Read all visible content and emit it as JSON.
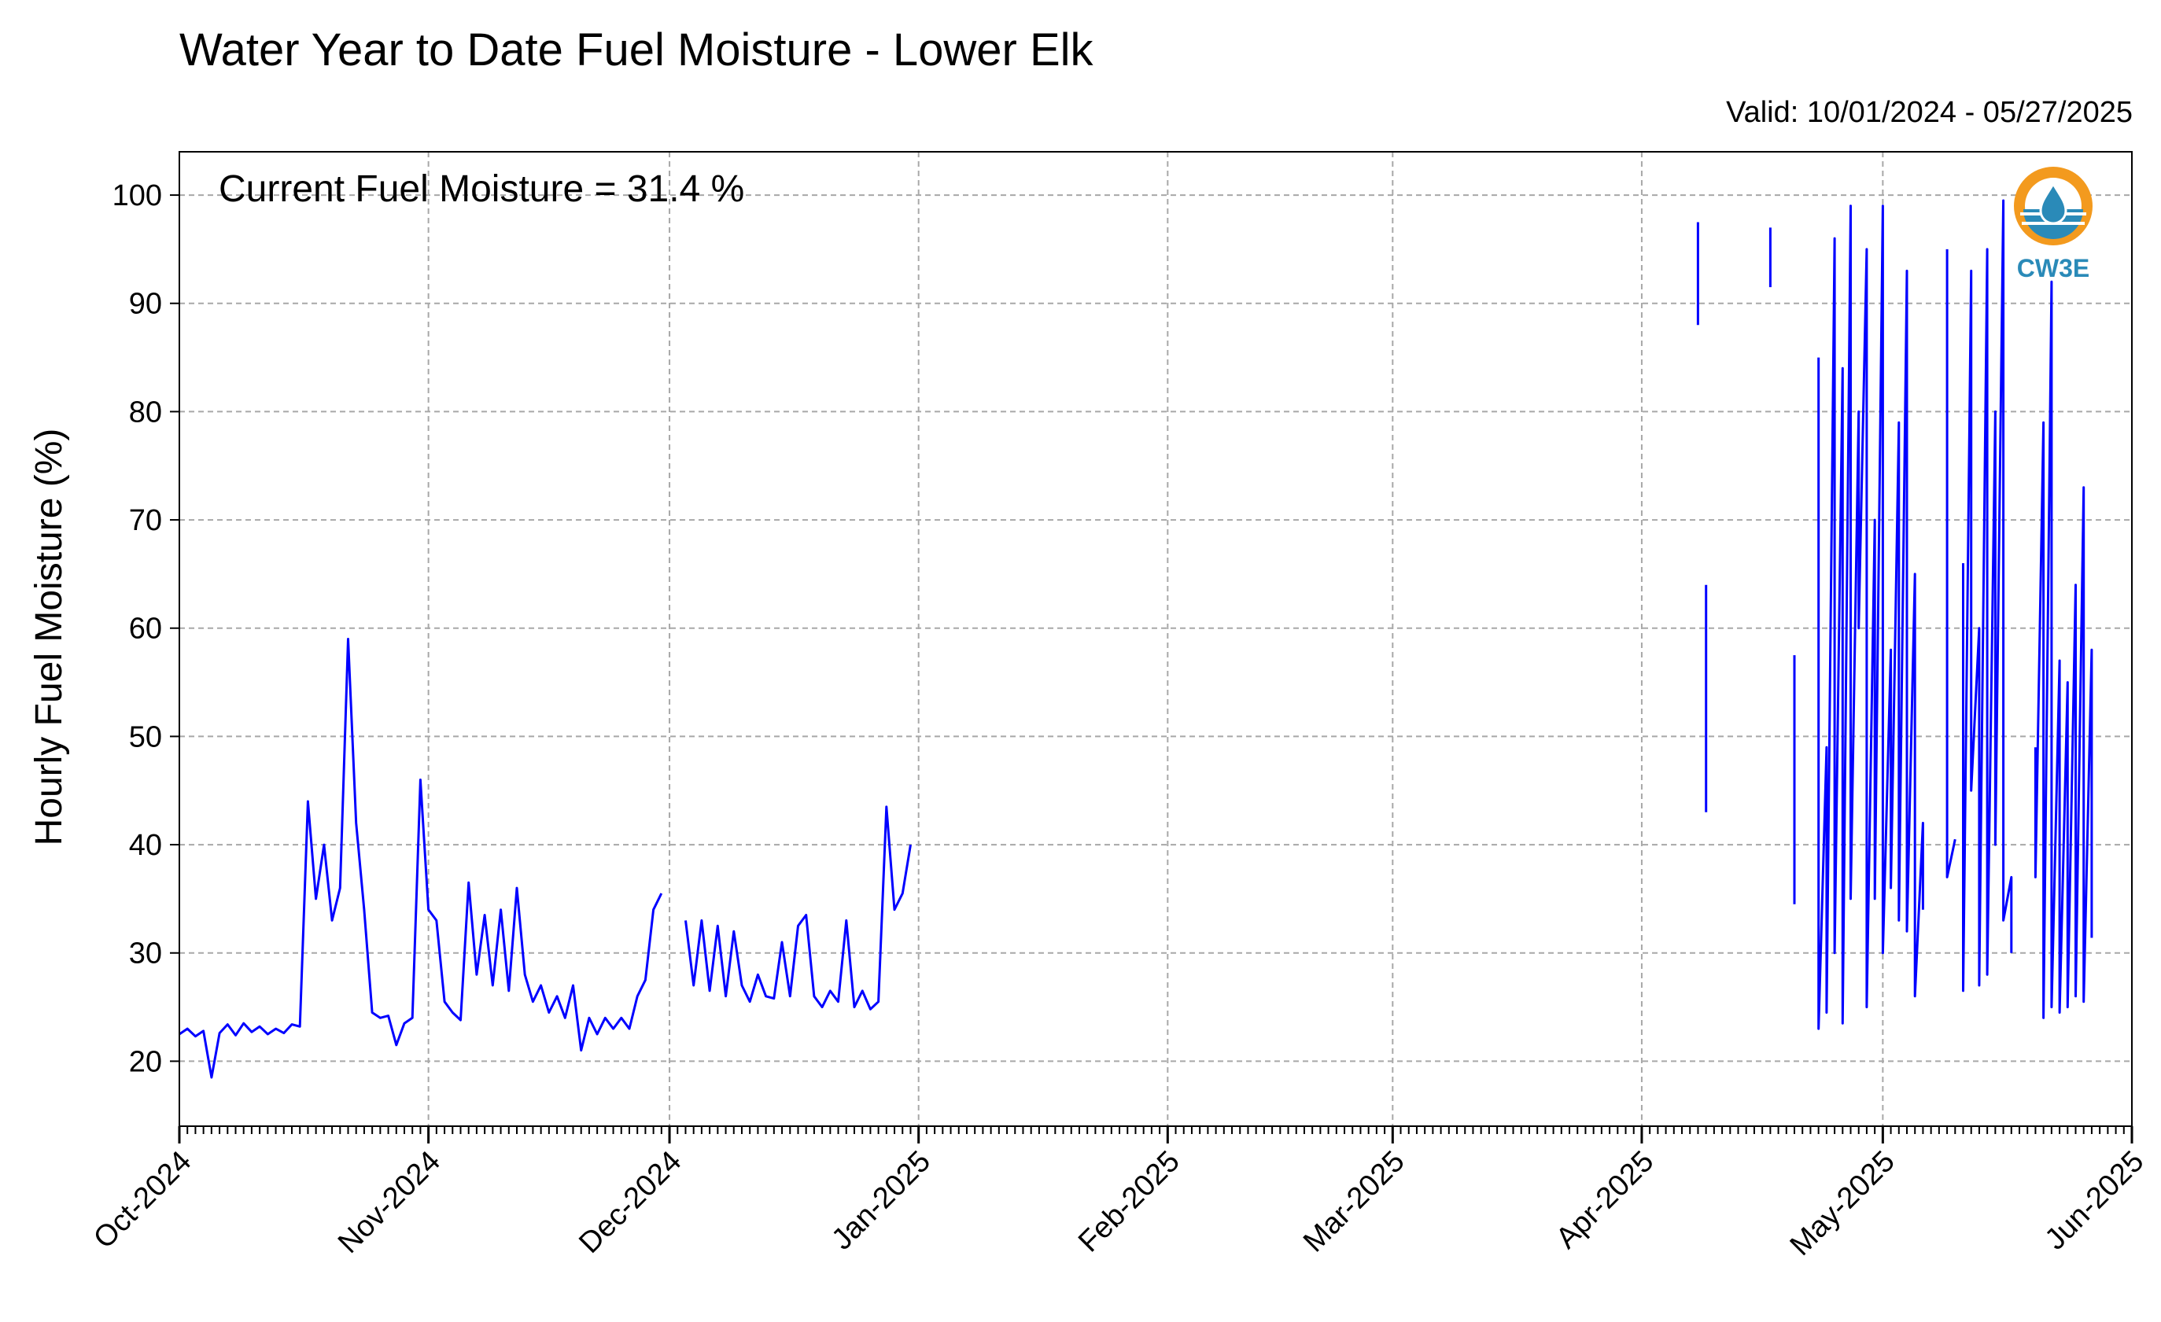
{
  "page": {
    "title": "Water Year to Date Fuel Moisture - Lower Elk",
    "valid": "Valid: 10/01/2024 - 05/27/2025"
  },
  "logo": {
    "text": "CW3E",
    "icon": "cw3e-logo-icon",
    "colors": {
      "orange": "#f39a1e",
      "blue": "#2a8ab8"
    }
  },
  "chart_data": {
    "type": "line",
    "title": "Water Year to Date Fuel Moisture - Lower Elk",
    "ylabel": "Hourly Fuel Moisture (%)",
    "xlabel": "",
    "annotation": "Current Fuel Moisture = 31.4 %",
    "ylim": [
      14,
      104
    ],
    "yticks": [
      20,
      30,
      40,
      50,
      60,
      70,
      80,
      90,
      100
    ],
    "xlim": [
      "2024-10-01",
      "2025-06-01"
    ],
    "xticks": [
      {
        "date": "2024-10-01",
        "label": "Oct-2024"
      },
      {
        "date": "2024-11-01",
        "label": "Nov-2024"
      },
      {
        "date": "2024-12-01",
        "label": "Dec-2024"
      },
      {
        "date": "2025-01-01",
        "label": "Jan-2025"
      },
      {
        "date": "2025-02-01",
        "label": "Feb-2025"
      },
      {
        "date": "2025-03-01",
        "label": "Mar-2025"
      },
      {
        "date": "2025-04-01",
        "label": "Apr-2025"
      },
      {
        "date": "2025-05-01",
        "label": "May-2025"
      },
      {
        "date": "2025-06-01",
        "label": "Jun-2025"
      }
    ],
    "grid": true,
    "line_color": "#0000ff",
    "series": [
      {
        "values_by_segment": [
          [
            [
              "2024-10-01",
              22.5
            ],
            [
              "2024-10-02",
              23.0
            ],
            [
              "2024-10-03",
              22.3
            ],
            [
              "2024-10-04",
              22.8
            ],
            [
              "2024-10-05",
              18.5
            ],
            [
              "2024-10-06",
              22.6
            ],
            [
              "2024-10-07",
              23.4
            ],
            [
              "2024-10-08",
              22.4
            ],
            [
              "2024-10-09",
              23.5
            ],
            [
              "2024-10-10",
              22.7
            ],
            [
              "2024-10-11",
              23.2
            ],
            [
              "2024-10-12",
              22.5
            ],
            [
              "2024-10-13",
              23.0
            ],
            [
              "2024-10-14",
              22.6
            ],
            [
              "2024-10-15",
              23.4
            ],
            [
              "2024-10-16",
              23.2
            ],
            [
              "2024-10-17",
              44.0
            ],
            [
              "2024-10-18",
              35.0
            ],
            [
              "2024-10-19",
              40.0
            ],
            [
              "2024-10-20",
              33.0
            ],
            [
              "2024-10-21",
              36.0
            ],
            [
              "2024-10-22",
              59.0
            ],
            [
              "2024-10-23",
              42.0
            ],
            [
              "2024-10-24",
              34.0
            ],
            [
              "2024-10-25",
              24.5
            ],
            [
              "2024-10-26",
              24.0
            ],
            [
              "2024-10-27",
              24.2
            ],
            [
              "2024-10-28",
              21.5
            ],
            [
              "2024-10-29",
              23.5
            ],
            [
              "2024-10-30",
              24.0
            ],
            [
              "2024-10-31",
              46.0
            ],
            [
              "2024-11-01",
              34.0
            ],
            [
              "2024-11-02",
              33.0
            ],
            [
              "2024-11-03",
              25.5
            ],
            [
              "2024-11-04",
              24.5
            ],
            [
              "2024-11-05",
              23.8
            ],
            [
              "2024-11-06",
              36.5
            ],
            [
              "2024-11-07",
              28.0
            ],
            [
              "2024-11-08",
              33.5
            ],
            [
              "2024-11-09",
              27.0
            ],
            [
              "2024-11-10",
              34.0
            ],
            [
              "2024-11-11",
              26.5
            ],
            [
              "2024-11-12",
              36.0
            ],
            [
              "2024-11-13",
              28.0
            ],
            [
              "2024-11-14",
              25.5
            ],
            [
              "2024-11-15",
              27.0
            ],
            [
              "2024-11-16",
              24.5
            ],
            [
              "2024-11-17",
              26.0
            ],
            [
              "2024-11-18",
              24.0
            ],
            [
              "2024-11-19",
              27.0
            ],
            [
              "2024-11-20",
              21.0
            ],
            [
              "2024-11-21",
              24.0
            ],
            [
              "2024-11-22",
              22.5
            ],
            [
              "2024-11-23",
              24.0
            ],
            [
              "2024-11-24",
              23.0
            ],
            [
              "2024-11-25",
              24.0
            ],
            [
              "2024-11-26",
              23.0
            ],
            [
              "2024-11-27",
              26.0
            ],
            [
              "2024-11-28",
              27.5
            ],
            [
              "2024-11-29",
              34.0
            ],
            [
              "2024-11-30",
              35.5
            ]
          ],
          [
            [
              "2024-12-03",
              33.0
            ],
            [
              "2024-12-04",
              27.0
            ],
            [
              "2024-12-05",
              33.0
            ],
            [
              "2024-12-06",
              26.5
            ],
            [
              "2024-12-07",
              32.5
            ],
            [
              "2024-12-08",
              26.0
            ],
            [
              "2024-12-09",
              32.0
            ],
            [
              "2024-12-10",
              27.0
            ],
            [
              "2024-12-11",
              25.5
            ],
            [
              "2024-12-12",
              28.0
            ],
            [
              "2024-12-13",
              26.0
            ],
            [
              "2024-12-14",
              25.8
            ],
            [
              "2024-12-15",
              31.0
            ],
            [
              "2024-12-16",
              26.0
            ],
            [
              "2024-12-17",
              32.5
            ],
            [
              "2024-12-18",
              33.5
            ],
            [
              "2024-12-19",
              26.0
            ],
            [
              "2024-12-20",
              25.0
            ],
            [
              "2024-12-21",
              26.5
            ],
            [
              "2024-12-22",
              25.5
            ],
            [
              "2024-12-23",
              33.0
            ],
            [
              "2024-12-24",
              25.0
            ],
            [
              "2024-12-25",
              26.5
            ],
            [
              "2024-12-26",
              24.8
            ],
            [
              "2024-12-27",
              25.5
            ],
            [
              "2024-12-28",
              43.5
            ],
            [
              "2024-12-29",
              34.0
            ],
            [
              "2024-12-30",
              35.5
            ],
            [
              "2024-12-31",
              40.0
            ]
          ],
          [
            [
              "2025-04-08",
              97.5
            ],
            [
              "2025-04-08",
              88.0
            ]
          ],
          [
            [
              "2025-04-09",
              64.0
            ],
            [
              "2025-04-09",
              43.0
            ]
          ],
          [
            [
              "2025-04-17",
              97.0
            ],
            [
              "2025-04-17",
              91.5
            ]
          ],
          [
            [
              "2025-04-20",
              57.5
            ],
            [
              "2025-04-20",
              40.0
            ],
            [
              "2025-04-20",
              34.5
            ]
          ],
          [
            [
              "2025-04-23",
              85.0
            ],
            [
              "2025-04-23",
              23.0
            ],
            [
              "2025-04-24",
              49.0
            ],
            [
              "2025-04-24",
              24.5
            ],
            [
              "2025-04-25",
              96.0
            ],
            [
              "2025-04-25",
              30.0
            ],
            [
              "2025-04-26",
              84.0
            ],
            [
              "2025-04-26",
              23.5
            ],
            [
              "2025-04-27",
              99.0
            ],
            [
              "2025-04-27",
              35.0
            ],
            [
              "2025-04-28",
              80.0
            ],
            [
              "2025-04-28",
              60.0
            ],
            [
              "2025-04-29",
              95.0
            ],
            [
              "2025-04-29",
              25.0
            ],
            [
              "2025-04-30",
              70.0
            ],
            [
              "2025-04-30",
              35.0
            ],
            [
              "2025-05-01",
              99.0
            ],
            [
              "2025-05-01",
              30.0
            ],
            [
              "2025-05-02",
              58.0
            ],
            [
              "2025-05-02",
              36.0
            ],
            [
              "2025-05-03",
              79.0
            ],
            [
              "2025-05-03",
              33.0
            ],
            [
              "2025-05-04",
              93.0
            ],
            [
              "2025-05-04",
              32.0
            ],
            [
              "2025-05-05",
              65.0
            ],
            [
              "2025-05-05",
              26.0
            ],
            [
              "2025-05-06",
              42.0
            ],
            [
              "2025-05-06",
              34.0
            ]
          ],
          [
            [
              "2025-05-09",
              95.0
            ],
            [
              "2025-05-09",
              37.0
            ],
            [
              "2025-05-10",
              40.5
            ]
          ],
          [
            [
              "2025-05-11",
              66.0
            ],
            [
              "2025-05-11",
              26.5
            ],
            [
              "2025-05-12",
              93.0
            ],
            [
              "2025-05-12",
              45.0
            ],
            [
              "2025-05-13",
              60.0
            ],
            [
              "2025-05-13",
              27.0
            ],
            [
              "2025-05-14",
              95.0
            ],
            [
              "2025-05-14",
              28.0
            ],
            [
              "2025-05-15",
              80.0
            ],
            [
              "2025-05-15",
              40.0
            ],
            [
              "2025-05-16",
              99.5
            ],
            [
              "2025-05-16",
              33.0
            ],
            [
              "2025-05-17",
              37.0
            ],
            [
              "2025-05-17",
              30.0
            ]
          ],
          [
            [
              "2025-05-20",
              49.0
            ],
            [
              "2025-05-20",
              37.0
            ],
            [
              "2025-05-21",
              79.0
            ],
            [
              "2025-05-21",
              24.0
            ],
            [
              "2025-05-22",
              92.0
            ],
            [
              "2025-05-22",
              25.0
            ],
            [
              "2025-05-23",
              57.0
            ],
            [
              "2025-05-23",
              24.5
            ],
            [
              "2025-05-24",
              55.0
            ],
            [
              "2025-05-24",
              25.0
            ],
            [
              "2025-05-25",
              64.0
            ],
            [
              "2025-05-25",
              26.0
            ],
            [
              "2025-05-26",
              73.0
            ],
            [
              "2025-05-26",
              25.5
            ],
            [
              "2025-05-27",
              58.0
            ],
            [
              "2025-05-27",
              31.4
            ]
          ]
        ]
      }
    ]
  }
}
